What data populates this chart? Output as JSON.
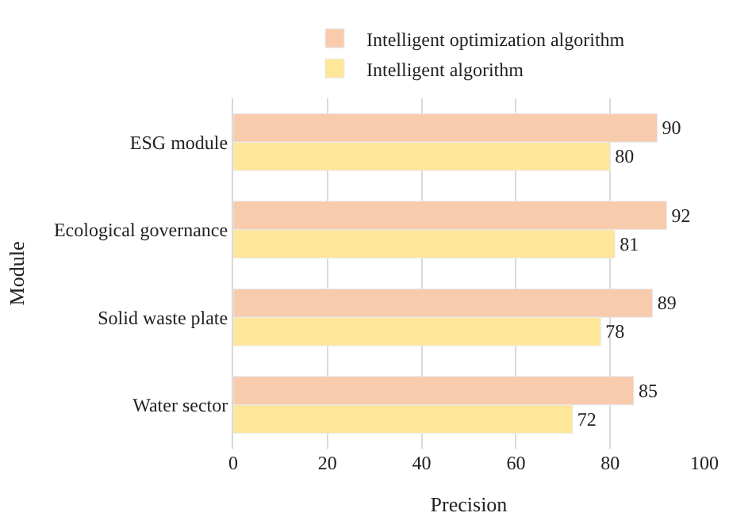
{
  "chart_data": {
    "type": "bar",
    "orientation": "horizontal",
    "xlabel": "Precision",
    "ylabel": "Module",
    "categories": [
      "ESG module",
      "Ecological governance",
      "Solid waste plate",
      "Water sector"
    ],
    "series": [
      {
        "name": "Intelligent optimization algorithm",
        "color": "#f8cbad",
        "values": [
          90,
          92,
          89,
          85
        ]
      },
      {
        "name": "Intelligent algorithm",
        "color": "#ffe699",
        "values": [
          80,
          81,
          78,
          72
        ]
      }
    ],
    "xlim": [
      0,
      100
    ],
    "xticks": [
      0,
      20,
      40,
      60,
      80,
      100
    ],
    "grid": "x",
    "legend": "top",
    "data_labels": true
  }
}
